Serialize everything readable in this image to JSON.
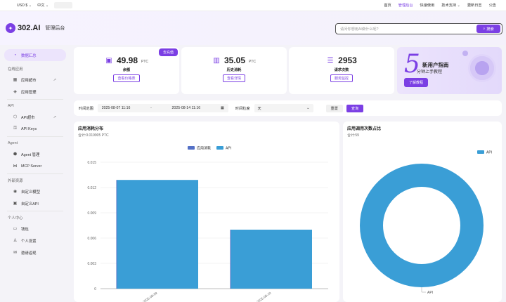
{
  "topbar": {
    "currency": "USD $",
    "language": "中文",
    "nav": [
      {
        "label": "首页",
        "active": false
      },
      {
        "label": "管理后台",
        "active": true
      },
      {
        "label": "快速使用",
        "active": false
      },
      {
        "label": "技术支持",
        "active": false
      },
      {
        "label": "更新日志",
        "active": false
      },
      {
        "label": "公告",
        "active": false
      }
    ]
  },
  "header": {
    "brand": "302.AI",
    "subtitle": "管理后台",
    "search_placeholder": "请问你想用AI做什么呢?",
    "search_button": "搜索"
  },
  "sidebar": {
    "dashboard": "数据汇总",
    "sec_online": "在线应用",
    "app_store": "应用超市",
    "app_manage": "应用管理",
    "sec_api": "API",
    "api_store": "API超市",
    "api_keys": "API Keys",
    "sec_agent": "Agent",
    "agent_manage": "Agent 管理",
    "mcp_server": "MCP Server",
    "sec_external": "外部资源",
    "custom_model": "自定义模型",
    "custom_api": "自定义API",
    "sec_personal": "个人中心",
    "wallet": "钱包",
    "profile": "个人设置",
    "invite": "邀请返现"
  },
  "stats": {
    "balance": {
      "value": "49.98",
      "unit": "PTC",
      "label": "余额",
      "link": "查看价格表",
      "badge": "去充值"
    },
    "history": {
      "value": "35.05",
      "unit": "PTC",
      "label": "历史消耗",
      "link": "查看详情"
    },
    "requests": {
      "value": "2953",
      "label": "请求次数",
      "link": "服务监控"
    }
  },
  "guide": {
    "num": "5",
    "title": "新用户指南",
    "subtitle": "分钟上手教程",
    "button": "了解教程"
  },
  "filter": {
    "range_label": "时间范围",
    "start": "2025-08-07 11:16",
    "sep": "-",
    "end": "2025-08-14 11:16",
    "granularity_label": "时间粒度",
    "granularity": "天",
    "reset": "重置",
    "query": "查询"
  },
  "bar_chart_card": {
    "title": "应用消耗分布",
    "subtitle": "合计:0.019905 PTC"
  },
  "pie_chart_card": {
    "title": "应用调用次数占比",
    "subtitle": "合计:59"
  },
  "chart_data": [
    {
      "type": "bar",
      "title": "应用消耗分布",
      "categories": [
        "2025-08-09",
        "2025-08-10"
      ],
      "series": [
        {
          "name": "应用消耗",
          "values": [
            0,
            0
          ],
          "color": "#5470c6"
        },
        {
          "name": "API",
          "values": [
            0.0129,
            0.007
          ],
          "color": "#3a9ed6"
        }
      ],
      "yticks": [
        "0",
        "0.003",
        "0.006",
        "0.009",
        "0.012",
        "0.015"
      ],
      "ylim": [
        0,
        0.015
      ],
      "legend": "top-center",
      "grid": true
    },
    {
      "type": "pie",
      "title": "应用调用次数占比",
      "slices": [
        {
          "name": "API",
          "value": 59,
          "color": "#3a9ed6"
        }
      ],
      "legend": "top-right",
      "donut": true
    }
  ]
}
